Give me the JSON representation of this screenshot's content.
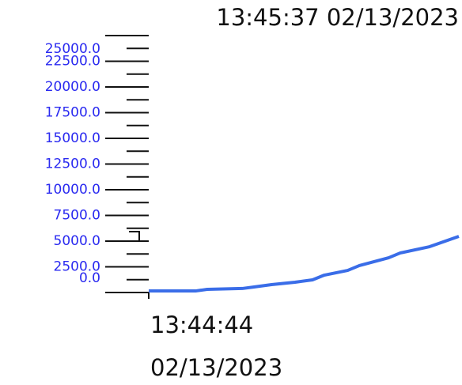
{
  "chart_data": {
    "type": "line",
    "xlim": [
      "13:44:44",
      "13:45:37"
    ],
    "date": "02/13/2023",
    "x": [
      "13:44:44",
      "13:44:52",
      "13:44:54",
      "13:45:00",
      "13:45:02",
      "13:45:05",
      "13:45:09",
      "13:45:12",
      "13:45:14",
      "13:45:18",
      "13:45:20",
      "13:45:25",
      "13:45:27",
      "13:45:32",
      "13:45:37"
    ],
    "series": [
      {
        "color": "#3a6de8",
        "values": [
          150,
          150,
          310,
          390,
          540,
          770,
          1000,
          1230,
          1690,
          2150,
          2620,
          3380,
          3850,
          4460,
          5460
        ]
      }
    ],
    "ylim": [
      0,
      25000
    ],
    "yticks": [
      {
        "value": 0,
        "label": "0.0"
      },
      {
        "value": 2500,
        "label": "2500.0"
      },
      {
        "value": 5000,
        "label": "5000.0"
      },
      {
        "value": 7500,
        "label": "7500.0"
      },
      {
        "value": 10000,
        "label": "10000.0"
      },
      {
        "value": 12500,
        "label": "12500.0"
      },
      {
        "value": 15000,
        "label": "15000.0"
      },
      {
        "value": 17500,
        "label": "17500.0"
      },
      {
        "value": 20000,
        "label": "20000.0"
      },
      {
        "value": 22500,
        "label": "22500.0"
      },
      {
        "value": 25000,
        "label": "25000.0"
      }
    ],
    "minor_yticks": [
      1250,
      3750,
      6250,
      8750,
      11250,
      13750,
      16250,
      18750,
      21250,
      23750
    ]
  }
}
